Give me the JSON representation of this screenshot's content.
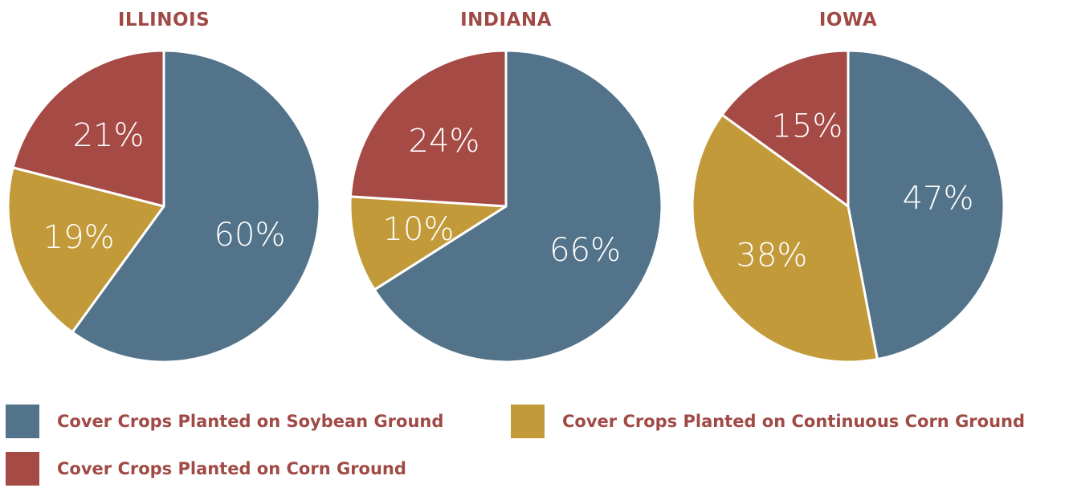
{
  "chart_data": {
    "type": "pie",
    "series_colors": {
      "soybean": "#527389",
      "continuous_corn": "#c29a3a",
      "corn": "#a54a45"
    },
    "charts": [
      {
        "title": "ILLINOIS",
        "slices": [
          {
            "key": "soybean",
            "value": 60,
            "label": "60%"
          },
          {
            "key": "continuous_corn",
            "value": 19,
            "label": "19%"
          },
          {
            "key": "corn",
            "value": 21,
            "label": "21%"
          }
        ]
      },
      {
        "title": "INDIANA",
        "slices": [
          {
            "key": "soybean",
            "value": 66,
            "label": "66%"
          },
          {
            "key": "continuous_corn",
            "value": 10,
            "label": "10%"
          },
          {
            "key": "corn",
            "value": 24,
            "label": "24%"
          }
        ]
      },
      {
        "title": "IOWA",
        "slices": [
          {
            "key": "soybean",
            "value": 47,
            "label": "47%"
          },
          {
            "key": "continuous_corn",
            "value": 38,
            "label": "38%"
          },
          {
            "key": "corn",
            "value": 15,
            "label": "15%"
          }
        ]
      }
    ],
    "legend": [
      {
        "key": "soybean",
        "label": "Cover Crops Planted on Soybean Ground"
      },
      {
        "key": "continuous_corn",
        "label": "Cover Crops Planted on Continuous Corn Ground"
      },
      {
        "key": "corn",
        "label": "Cover Crops Planted on Corn Ground"
      }
    ]
  }
}
